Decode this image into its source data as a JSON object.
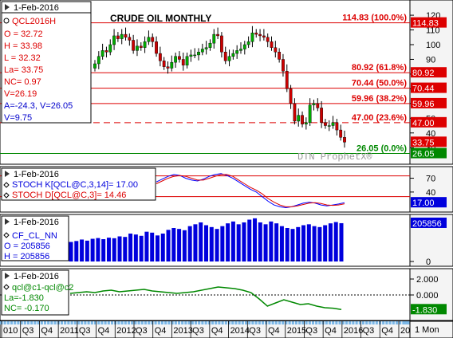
{
  "chart_data": [
    {
      "type": "candlestick",
      "title": "CRUDE OIL MONTHLY",
      "symbol": "QCL2016H",
      "date": "1-Feb-2016",
      "stats": {
        "open": "O = 32.72",
        "high": "H = 33.98",
        "low": "L = 32.32",
        "last": "La= 33.75",
        "net_change": "NC= 0.97",
        "volatility": "V=26.19",
        "a_v": "A=-24.3, V=26.05",
        "v2": "V=9.75"
      },
      "ylim": [
        22,
        126
      ],
      "yticks": [
        30,
        40,
        50,
        60,
        70,
        80,
        90,
        100,
        110,
        120
      ],
      "close": [
        87,
        92,
        96,
        95,
        100,
        106,
        104,
        107,
        105,
        103,
        96,
        99,
        98,
        102,
        105,
        102,
        94,
        89,
        85,
        84,
        88,
        92,
        90,
        86,
        92,
        93,
        93,
        95,
        97,
        98,
        101,
        107,
        106,
        95,
        89,
        92,
        94,
        96,
        97,
        100,
        102,
        108,
        107,
        106,
        105,
        102,
        98,
        95,
        90,
        82,
        70,
        60,
        48,
        52,
        46,
        47,
        59,
        60,
        57,
        47,
        45,
        45,
        47,
        42,
        37,
        33.75
      ],
      "fib_levels": [
        {
          "value": 114.83,
          "label": "114.83 (100.0%)",
          "style": "solid"
        },
        {
          "value": 80.92,
          "label": "80.92 (61.8%)",
          "style": "solid"
        },
        {
          "value": 70.44,
          "label": "70.44 (50.0%)",
          "style": "solid"
        },
        {
          "value": 59.96,
          "label": "59.96 (38.2%)",
          "style": "solid"
        },
        {
          "value": 47.0,
          "label": "47.00 (23.6%)",
          "style": "dashed"
        },
        {
          "value": 26.05,
          "label": "26.05 (0.0%)",
          "style": "solid-green"
        }
      ],
      "price_tags": [
        {
          "value": 114.83,
          "label": "114.83",
          "color": "#dd0000"
        },
        {
          "value": 80.92,
          "label": "80.92",
          "color": "#dd0000"
        },
        {
          "value": 70.44,
          "label": "70.44",
          "color": "#dd0000"
        },
        {
          "value": 59.96,
          "label": "59.96",
          "color": "#dd0000"
        },
        {
          "value": 47.0,
          "label": "47.00",
          "color": "#dd0000"
        },
        {
          "value": 33.75,
          "label": "33.75",
          "color": "#dd0000"
        },
        {
          "value": 26.05,
          "label": "26.05",
          "color": "#008800"
        }
      ],
      "watermark": "DTN ProphetX®"
    },
    {
      "type": "line",
      "date": "1-Feb-2016",
      "series": [
        {
          "name": "STOCH K[QCL@C,3,14]= 17.00",
          "color": "#0000ff",
          "values": [
            62,
            68,
            74,
            78,
            76,
            70,
            66,
            64,
            68,
            74,
            78,
            80,
            76,
            70,
            62,
            54,
            46,
            40,
            30,
            20,
            12,
            8,
            6,
            8,
            12,
            16,
            18,
            16,
            12,
            10,
            12,
            14,
            17
          ]
        },
        {
          "name": "STOCH D[QCL@C,3]= 14.46",
          "color": "#dd0000",
          "values": [
            58,
            64,
            70,
            74,
            76,
            74,
            70,
            66,
            66,
            70,
            74,
            78,
            78,
            74,
            66,
            58,
            50,
            44,
            36,
            26,
            18,
            12,
            8,
            8,
            10,
            13,
            16,
            17,
            15,
            12,
            11,
            12,
            14.46
          ]
        }
      ],
      "ylim": [
        0,
        90
      ],
      "yticks": [
        40,
        70
      ],
      "ref_lines": [
        75,
        30
      ],
      "price_tag": {
        "label": "17.00",
        "value": 17
      }
    },
    {
      "type": "bar",
      "date": "1-Feb-2016",
      "series_name": "CF_CL_NN",
      "stats": {
        "open": "O = 205856",
        "high": "H = 205856"
      },
      "ylim": [
        0,
        240000
      ],
      "values": [
        105000,
        110000,
        118000,
        112000,
        122000,
        126000,
        120000,
        128000,
        125000,
        135000,
        132000,
        150000,
        145000,
        138000,
        160000,
        155000,
        140000,
        150000,
        170000,
        180000,
        175000,
        168000,
        190000,
        200000,
        210000,
        195000,
        185000,
        175000,
        190000,
        205000,
        215000,
        200000,
        210000,
        225000,
        232000,
        210000,
        200000,
        215000,
        205000,
        190000,
        180000,
        175000,
        185000,
        195000,
        200000,
        190000,
        185000,
        195000,
        205000,
        212000,
        205856
      ],
      "price_tag": {
        "label": "205856",
        "value": 205856
      }
    },
    {
      "type": "line",
      "date": "1-Feb-2016",
      "series_name": "qcl@c1-qcl@c2",
      "stats": {
        "last": "La=-1.830",
        "net_change": "NC= -0.170"
      },
      "ylim": [
        -3.0,
        3.0
      ],
      "yticks": [
        2.0,
        0.0
      ],
      "values": [
        0.2,
        0.3,
        0.4,
        0.3,
        0.5,
        0.6,
        0.4,
        0.5,
        0.6,
        0.7,
        0.5,
        0.4,
        0.3,
        0.2,
        0.3,
        0.4,
        0.6,
        0.8,
        1.0,
        0.9,
        0.8,
        0.6,
        0.3,
        -0.5,
        -1.4,
        -1.0,
        -0.6,
        -0.9,
        -1.2,
        -1.1,
        -1.4,
        -1.6,
        -1.66,
        -1.83
      ],
      "price_tag": {
        "label": "-1.830",
        "value": -1.83
      }
    }
  ],
  "x_axis": {
    "labels": [
      "010",
      "Q3",
      "Q4",
      "2011",
      "Q3",
      "Q4",
      "2012",
      "Q3",
      "Q4",
      "2013",
      "Q3",
      "Q4",
      "2014",
      "Q3",
      "Q4",
      "2015",
      "Q3",
      "Q4",
      "2016",
      "Q3",
      "Q4",
      "20"
    ],
    "interval": "1 Mon"
  },
  "colors": {
    "up_candle": "#00aa00",
    "down_candle": "#cc0000",
    "fib_line": "#dd0000",
    "bar": "#0000dd",
    "spread_line": "#008800",
    "axis_bg": "#f4f4f4"
  }
}
